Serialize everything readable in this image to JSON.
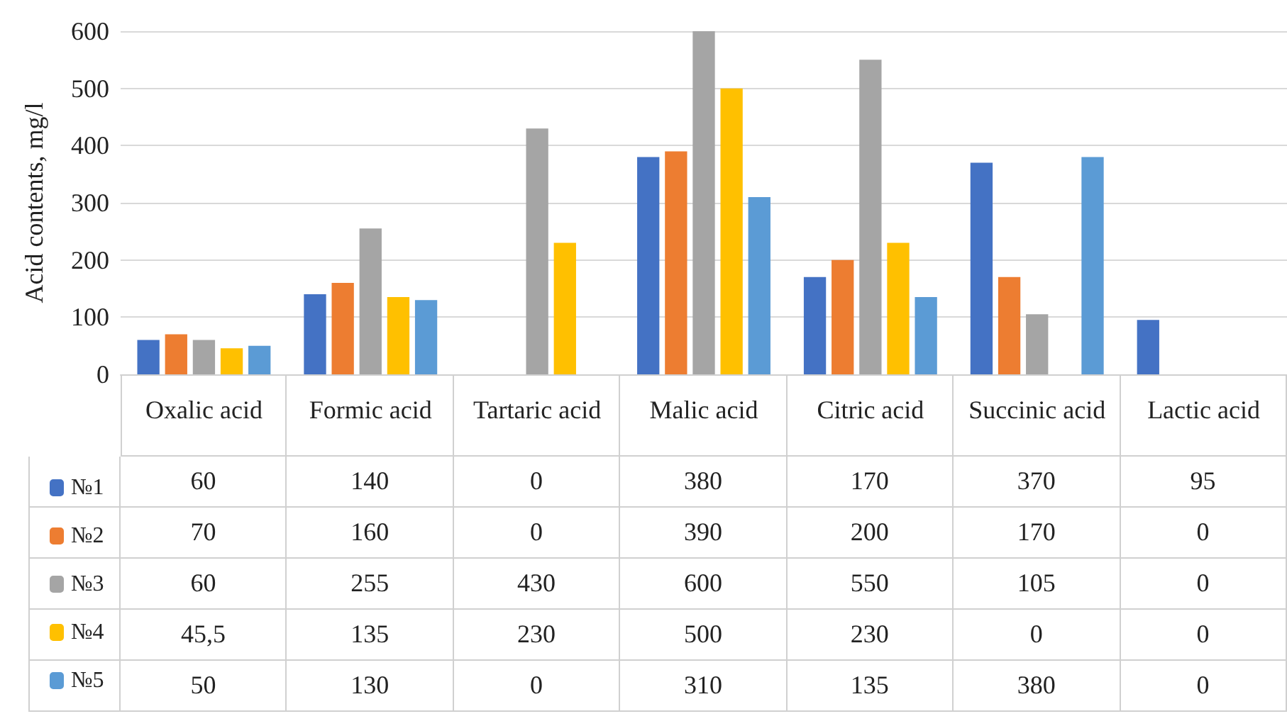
{
  "chart_data": {
    "type": "bar",
    "ylabel": "Acid contents, mg/l",
    "categories": [
      "Oxalic acid",
      "Formic acid",
      "Tartaric acid",
      "Malic acid",
      "Citric acid",
      "Succinic acid",
      "Lactic acid"
    ],
    "series": [
      {
        "name": "№1",
        "color": "#4472c4",
        "values": [
          60,
          140,
          0,
          380,
          170,
          370,
          95
        ],
        "value_labels": [
          "60",
          "140",
          "0",
          "380",
          "170",
          "370",
          "95"
        ]
      },
      {
        "name": "№2",
        "color": "#ed7d31",
        "values": [
          70,
          160,
          0,
          390,
          200,
          170,
          0
        ],
        "value_labels": [
          "70",
          "160",
          "0",
          "390",
          "200",
          "170",
          "0"
        ]
      },
      {
        "name": "№3",
        "color": "#a5a5a5",
        "values": [
          60,
          255,
          430,
          600,
          550,
          105,
          0
        ],
        "value_labels": [
          "60",
          "255",
          "430",
          "600",
          "550",
          "105",
          "0"
        ]
      },
      {
        "name": "№4",
        "color": "#ffc000",
        "values": [
          45.5,
          135,
          230,
          500,
          230,
          0,
          0
        ],
        "value_labels": [
          "45,5",
          "135",
          "230",
          "500",
          "230",
          "0",
          "0"
        ]
      },
      {
        "name": "№5",
        "color": "#5b9bd5",
        "values": [
          50,
          130,
          0,
          310,
          135,
          380,
          0
        ],
        "value_labels": [
          "50",
          "130",
          "0",
          "310",
          "135",
          "380",
          "0"
        ]
      }
    ],
    "ylim": [
      0,
      600
    ],
    "yticks": [
      0,
      100,
      200,
      300,
      400,
      500,
      600
    ],
    "grid": "y",
    "legend": "bottom left"
  }
}
